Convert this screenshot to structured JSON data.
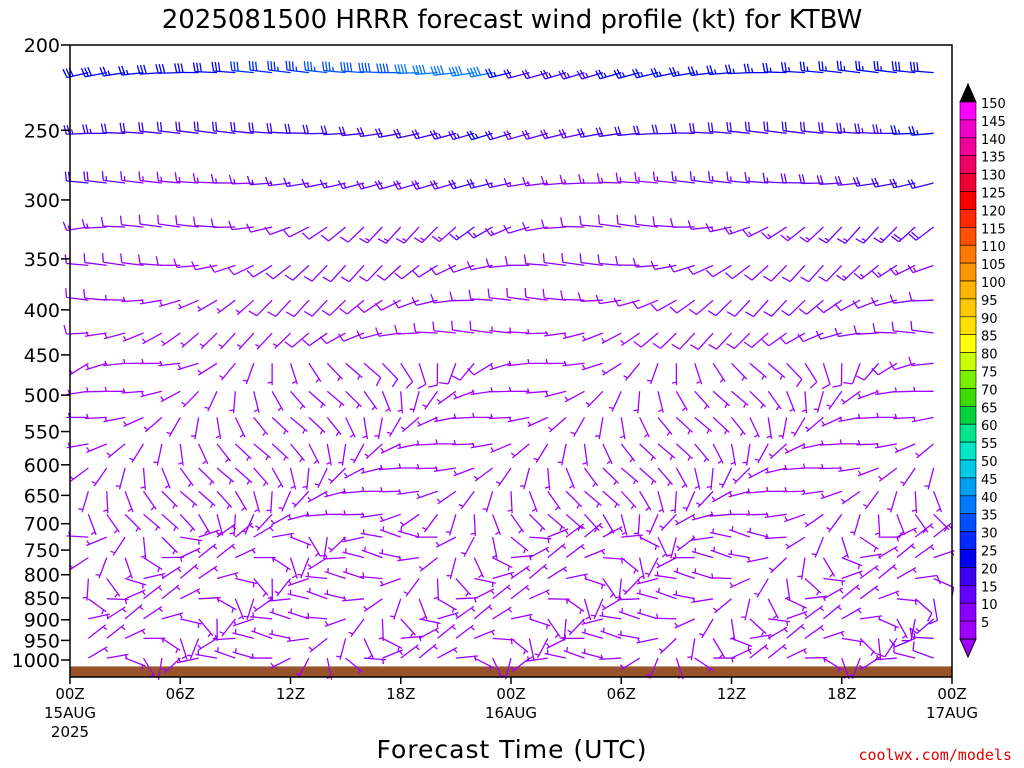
{
  "chart_data": {
    "type": "wind-barb-profile",
    "title": "2025081500 HRRR forecast wind profile (kt) for KTBW",
    "xlabel": "Forecast Time (UTC)",
    "ylabel": "",
    "credit": "coolwx.com/models",
    "x_range_hours": [
      0,
      48
    ],
    "y_range_hPa": [
      200,
      1030
    ],
    "y_scale": "log",
    "grid": false,
    "legend": "right",
    "x_ticks": [
      {
        "hour": 0,
        "label": "00Z",
        "sub1": "15AUG",
        "sub2": "2025"
      },
      {
        "hour": 6,
        "label": "06Z",
        "sub1": "",
        "sub2": ""
      },
      {
        "hour": 12,
        "label": "12Z",
        "sub1": "",
        "sub2": ""
      },
      {
        "hour": 18,
        "label": "18Z",
        "sub1": "",
        "sub2": ""
      },
      {
        "hour": 24,
        "label": "00Z",
        "sub1": "16AUG",
        "sub2": ""
      },
      {
        "hour": 30,
        "label": "06Z",
        "sub1": "",
        "sub2": ""
      },
      {
        "hour": 36,
        "label": "12Z",
        "sub1": "",
        "sub2": ""
      },
      {
        "hour": 42,
        "label": "18Z",
        "sub1": "",
        "sub2": ""
      },
      {
        "hour": 48,
        "label": "00Z",
        "sub1": "17AUG",
        "sub2": ""
      }
    ],
    "y_ticks": [
      200,
      250,
      300,
      350,
      400,
      450,
      500,
      550,
      600,
      650,
      700,
      750,
      800,
      850,
      900,
      950,
      1000
    ],
    "colorbar": {
      "labels": [
        "150",
        "145",
        "140",
        "135",
        "130",
        "125",
        "120",
        "115",
        "110",
        "105",
        "100",
        "95",
        "90",
        "85",
        "80",
        "75",
        "70",
        "65",
        "60",
        "55",
        "50",
        "45",
        "40",
        "35",
        "30",
        "25",
        "20",
        "15",
        "10",
        "5"
      ],
      "colors": [
        "#ff00ff",
        "#f000c8",
        "#f00096",
        "#f00064",
        "#f00032",
        "#ff0000",
        "#ff2800",
        "#ff5000",
        "#ff7800",
        "#ff9600",
        "#ffb400",
        "#ffc800",
        "#ffe000",
        "#ffff00",
        "#c8ff00",
        "#78f000",
        "#3cdc00",
        "#00d23c",
        "#00e68c",
        "#00e6c8",
        "#00c8e6",
        "#00a0f0",
        "#0078ff",
        "#0050ff",
        "#0028ff",
        "#0000f0",
        "#3c00f0",
        "#6400ff",
        "#8c00ff",
        "#a000ff"
      ],
      "top_arrow_color": "#000000",
      "bottom_arrow_color": "#a000ff"
    },
    "terrain": {
      "color": "#99532b",
      "surface_hPa": 1017
    },
    "levels_hPa": [
      215,
      252,
      287,
      322,
      356,
      390,
      425,
      460,
      495,
      530,
      568,
      605,
      643,
      683,
      725,
      765,
      808,
      852,
      898,
      945,
      995
    ],
    "times_hours": [
      0,
      1,
      2,
      3,
      4,
      5,
      6,
      7,
      8,
      9,
      10,
      11,
      12,
      13,
      14,
      15,
      16,
      17,
      18,
      19,
      20,
      21,
      22,
      23,
      24,
      25,
      26,
      27,
      28,
      29,
      30,
      31,
      32,
      33,
      34,
      35,
      36,
      37,
      38,
      39,
      40,
      41,
      42,
      43,
      44,
      45,
      46,
      47,
      48
    ],
    "wind_speed_kt_by_level": [
      {
        "hPa": 215,
        "speed_kt": [
          26,
          28,
          28,
          26,
          26,
          28,
          28,
          28,
          28,
          28,
          30,
          32,
          34,
          34,
          36,
          36,
          38,
          38,
          38,
          40,
          40,
          40,
          42,
          42,
          26,
          22,
          22,
          24,
          24,
          24,
          26,
          26,
          26,
          26,
          26,
          26,
          26,
          26,
          26,
          26,
          26,
          26,
          26,
          26,
          26,
          26,
          28,
          28,
          28
        ]
      },
      {
        "hPa": 252,
        "speed_kt": [
          24,
          24,
          24,
          22,
          20,
          20,
          20,
          20,
          20,
          20,
          20,
          20,
          20,
          20,
          20,
          22,
          22,
          22,
          22,
          22,
          22,
          24,
          24,
          26,
          20,
          18,
          18,
          18,
          18,
          20,
          20,
          20,
          20,
          20,
          20,
          20,
          22,
          22,
          22,
          22,
          22,
          22,
          22,
          24,
          24,
          24,
          26,
          26,
          26
        ]
      },
      {
        "hPa": 287,
        "speed_kt": [
          20,
          20,
          18,
          16,
          14,
          14,
          14,
          14,
          14,
          14,
          14,
          16,
          16,
          16,
          16,
          16,
          16,
          16,
          18,
          18,
          18,
          18,
          20,
          20,
          16,
          14,
          14,
          14,
          14,
          14,
          14,
          14,
          14,
          14,
          16,
          16,
          16,
          16,
          16,
          16,
          18,
          18,
          18,
          18,
          20,
          20,
          20,
          22,
          22
        ]
      },
      {
        "hPa": 322,
        "speed_kt": [
          16,
          14,
          14,
          12,
          12,
          10,
          10,
          10,
          10,
          10,
          12,
          12,
          12,
          12,
          12,
          12,
          12,
          14,
          14,
          14,
          14,
          14,
          16,
          16,
          14,
          12,
          12,
          12,
          12,
          12,
          12,
          12,
          12,
          12,
          12,
          12,
          14,
          14,
          14,
          14,
          14,
          14,
          16,
          16,
          16,
          16,
          18,
          18,
          18
        ]
      },
      {
        "hPa": 356,
        "speed_kt": [
          12,
          12,
          10,
          10,
          8,
          8,
          8,
          8,
          8,
          8,
          8,
          10,
          10,
          10,
          10,
          10,
          10,
          10,
          10,
          12,
          12,
          12,
          12,
          12,
          10,
          10,
          10,
          10,
          10,
          10,
          10,
          10,
          10,
          10,
          10,
          12,
          12,
          12,
          12,
          12,
          12,
          12,
          12,
          14,
          14,
          14,
          14,
          14,
          14
        ]
      },
      {
        "hPa": 390,
        "speed_kt": [
          10,
          8,
          8,
          6,
          6,
          6,
          6,
          6,
          6,
          6,
          6,
          8,
          8,
          8,
          8,
          8,
          8,
          8,
          8,
          10,
          10,
          10,
          10,
          10,
          8,
          8,
          8,
          8,
          8,
          8,
          8,
          8,
          8,
          8,
          8,
          8,
          10,
          10,
          10,
          10,
          10,
          10,
          10,
          10,
          12,
          12,
          12,
          12,
          12
        ]
      },
      {
        "hPa": 425,
        "speed_kt": [
          8,
          8,
          6,
          6,
          6,
          6,
          6,
          6,
          6,
          6,
          6,
          6,
          6,
          8,
          8,
          8,
          8,
          8,
          8,
          8,
          8,
          8,
          8,
          8,
          6,
          6,
          6,
          6,
          6,
          6,
          6,
          6,
          8,
          8,
          8,
          8,
          8,
          8,
          8,
          8,
          8,
          10,
          10,
          10,
          10,
          10,
          10,
          10,
          10
        ]
      },
      {
        "hPa": 460,
        "speed_kt": [
          6,
          6,
          6,
          6,
          6,
          6,
          6,
          6,
          6,
          6,
          6,
          6,
          6,
          6,
          6,
          6,
          8,
          8,
          8,
          8,
          8,
          8,
          8,
          8,
          6,
          6,
          6,
          6,
          6,
          6,
          6,
          6,
          6,
          6,
          6,
          6,
          6,
          6,
          6,
          8,
          8,
          8,
          8,
          8,
          8,
          8,
          8,
          8,
          8
        ]
      },
      {
        "hPa": 495,
        "speed_kt": [
          6,
          6,
          6,
          6,
          6,
          6,
          6,
          6,
          6,
          6,
          6,
          6,
          6,
          6,
          6,
          6,
          6,
          6,
          6,
          6,
          6,
          6,
          6,
          6,
          6,
          6,
          6,
          6,
          6,
          6,
          6,
          6,
          6,
          6,
          6,
          6,
          6,
          6,
          6,
          6,
          6,
          6,
          6,
          6,
          6,
          6,
          6,
          6,
          6
        ]
      },
      {
        "hPa": 530,
        "speed_kt": [
          6,
          6,
          6,
          6,
          6,
          6,
          6,
          6,
          6,
          6,
          6,
          6,
          6,
          6,
          6,
          6,
          6,
          6,
          6,
          6,
          6,
          6,
          6,
          6,
          6,
          6,
          6,
          6,
          6,
          6,
          6,
          6,
          6,
          6,
          6,
          6,
          6,
          6,
          6,
          6,
          6,
          6,
          6,
          6,
          6,
          6,
          6,
          6,
          6
        ]
      },
      {
        "hPa": 568,
        "speed_kt": [
          6,
          6,
          6,
          6,
          6,
          6,
          6,
          6,
          6,
          6,
          6,
          6,
          6,
          6,
          6,
          6,
          6,
          6,
          6,
          6,
          6,
          6,
          6,
          6,
          6,
          6,
          6,
          6,
          6,
          6,
          6,
          6,
          6,
          6,
          6,
          6,
          6,
          6,
          6,
          6,
          6,
          6,
          6,
          6,
          6,
          6,
          6,
          6,
          6
        ]
      },
      {
        "hPa": 605,
        "speed_kt": [
          6,
          6,
          6,
          6,
          6,
          6,
          6,
          6,
          6,
          6,
          6,
          6,
          6,
          6,
          6,
          6,
          6,
          6,
          6,
          6,
          6,
          6,
          6,
          6,
          6,
          6,
          6,
          6,
          6,
          6,
          6,
          6,
          6,
          6,
          6,
          6,
          6,
          6,
          6,
          6,
          6,
          6,
          6,
          6,
          6,
          6,
          6,
          6,
          6
        ]
      },
      {
        "hPa": 643,
        "speed_kt": [
          6,
          6,
          6,
          6,
          6,
          6,
          6,
          6,
          6,
          6,
          6,
          6,
          6,
          6,
          6,
          6,
          6,
          6,
          6,
          6,
          6,
          6,
          6,
          6,
          6,
          6,
          6,
          6,
          6,
          6,
          6,
          6,
          6,
          6,
          6,
          6,
          6,
          6,
          6,
          6,
          6,
          6,
          6,
          6,
          6,
          6,
          6,
          6,
          6
        ]
      },
      {
        "hPa": 683,
        "speed_kt": [
          6,
          6,
          6,
          6,
          6,
          6,
          6,
          6,
          6,
          6,
          6,
          6,
          6,
          6,
          6,
          6,
          6,
          6,
          6,
          6,
          6,
          6,
          6,
          6,
          6,
          6,
          6,
          6,
          6,
          6,
          6,
          6,
          6,
          6,
          6,
          6,
          6,
          6,
          6,
          6,
          6,
          6,
          6,
          6,
          6,
          6,
          6,
          6,
          6
        ]
      },
      {
        "hPa": 725,
        "speed_kt": [
          6,
          6,
          6,
          6,
          6,
          6,
          6,
          6,
          6,
          6,
          6,
          6,
          6,
          6,
          6,
          6,
          6,
          6,
          6,
          6,
          6,
          6,
          6,
          6,
          6,
          6,
          6,
          6,
          6,
          6,
          6,
          6,
          6,
          6,
          6,
          6,
          6,
          6,
          6,
          6,
          6,
          6,
          6,
          6,
          6,
          6,
          6,
          6,
          6
        ]
      },
      {
        "hPa": 765,
        "speed_kt": [
          6,
          6,
          6,
          6,
          6,
          6,
          6,
          6,
          6,
          6,
          6,
          6,
          6,
          6,
          6,
          6,
          6,
          6,
          6,
          6,
          6,
          6,
          6,
          6,
          6,
          6,
          6,
          6,
          6,
          6,
          6,
          6,
          6,
          6,
          6,
          6,
          6,
          6,
          6,
          6,
          6,
          6,
          6,
          6,
          6,
          6,
          6,
          6,
          6
        ]
      },
      {
        "hPa": 808,
        "speed_kt": [
          6,
          6,
          6,
          6,
          6,
          6,
          6,
          6,
          6,
          6,
          6,
          6,
          6,
          6,
          6,
          6,
          6,
          6,
          6,
          6,
          6,
          6,
          6,
          6,
          6,
          6,
          6,
          6,
          6,
          6,
          6,
          6,
          6,
          6,
          6,
          6,
          6,
          6,
          6,
          6,
          6,
          6,
          6,
          6,
          6,
          6,
          8,
          10,
          10
        ]
      },
      {
        "hPa": 852,
        "speed_kt": [
          6,
          6,
          6,
          6,
          6,
          6,
          6,
          6,
          6,
          6,
          6,
          6,
          6,
          6,
          6,
          6,
          6,
          6,
          6,
          6,
          6,
          6,
          6,
          6,
          6,
          6,
          6,
          6,
          6,
          6,
          6,
          6,
          6,
          6,
          6,
          6,
          6,
          6,
          6,
          6,
          6,
          6,
          6,
          6,
          6,
          6,
          10,
          12,
          14
        ]
      },
      {
        "hPa": 898,
        "speed_kt": [
          6,
          6,
          6,
          6,
          6,
          6,
          6,
          6,
          6,
          6,
          6,
          6,
          6,
          6,
          6,
          6,
          6,
          6,
          6,
          6,
          6,
          6,
          6,
          6,
          6,
          6,
          6,
          6,
          6,
          6,
          6,
          6,
          6,
          6,
          6,
          6,
          6,
          6,
          6,
          6,
          6,
          6,
          6,
          6,
          6,
          6,
          10,
          14,
          16
        ]
      },
      {
        "hPa": 945,
        "speed_kt": [
          6,
          6,
          6,
          6,
          6,
          6,
          6,
          6,
          6,
          6,
          6,
          6,
          6,
          6,
          6,
          6,
          6,
          6,
          6,
          6,
          6,
          6,
          6,
          6,
          6,
          6,
          6,
          6,
          6,
          6,
          6,
          6,
          6,
          6,
          6,
          6,
          6,
          6,
          6,
          6,
          6,
          6,
          6,
          6,
          6,
          8,
          12,
          14,
          16
        ]
      },
      {
        "hPa": 995,
        "speed_kt": [
          6,
          6,
          6,
          6,
          6,
          6,
          6,
          6,
          6,
          6,
          6,
          6,
          6,
          6,
          6,
          6,
          6,
          6,
          6,
          6,
          6,
          6,
          6,
          6,
          6,
          6,
          6,
          6,
          6,
          6,
          6,
          6,
          6,
          6,
          6,
          6,
          6,
          6,
          6,
          6,
          6,
          6,
          6,
          6,
          6,
          6,
          8,
          10,
          12
        ]
      }
    ]
  }
}
